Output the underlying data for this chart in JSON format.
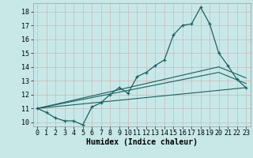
{
  "xlabel": "Humidex (Indice chaleur)",
  "background_color": "#c8e8e8",
  "grid_color": "#c8b8b8",
  "line_color": "#1a6060",
  "xlim": [
    -0.5,
    23.5
  ],
  "ylim": [
    9.7,
    18.6
  ],
  "yticks": [
    10,
    11,
    12,
    13,
    14,
    15,
    16,
    17,
    18
  ],
  "xticks": [
    0,
    1,
    2,
    3,
    4,
    5,
    6,
    7,
    8,
    9,
    10,
    11,
    12,
    13,
    14,
    15,
    16,
    17,
    18,
    19,
    20,
    21,
    22,
    23
  ],
  "line1_x": [
    0,
    1,
    2,
    3,
    4,
    5,
    6,
    7,
    8,
    9,
    10,
    11,
    12,
    13,
    14,
    15,
    16,
    17,
    18,
    19,
    20,
    21,
    22,
    23
  ],
  "line1_y": [
    11.0,
    10.7,
    10.3,
    10.1,
    10.1,
    9.8,
    11.1,
    11.4,
    12.0,
    12.5,
    12.1,
    13.3,
    13.6,
    14.1,
    14.5,
    16.3,
    17.0,
    17.1,
    18.3,
    17.1,
    15.0,
    14.1,
    13.1,
    12.5
  ],
  "line2_x": [
    0,
    23
  ],
  "line2_y": [
    11.0,
    12.5
  ],
  "line3_x": [
    0,
    20,
    23
  ],
  "line3_y": [
    11.0,
    13.6,
    12.8
  ],
  "line4_x": [
    0,
    20,
    23
  ],
  "line4_y": [
    11.0,
    14.0,
    13.2
  ],
  "font_size_xlabel": 7,
  "font_size_ticks": 6
}
